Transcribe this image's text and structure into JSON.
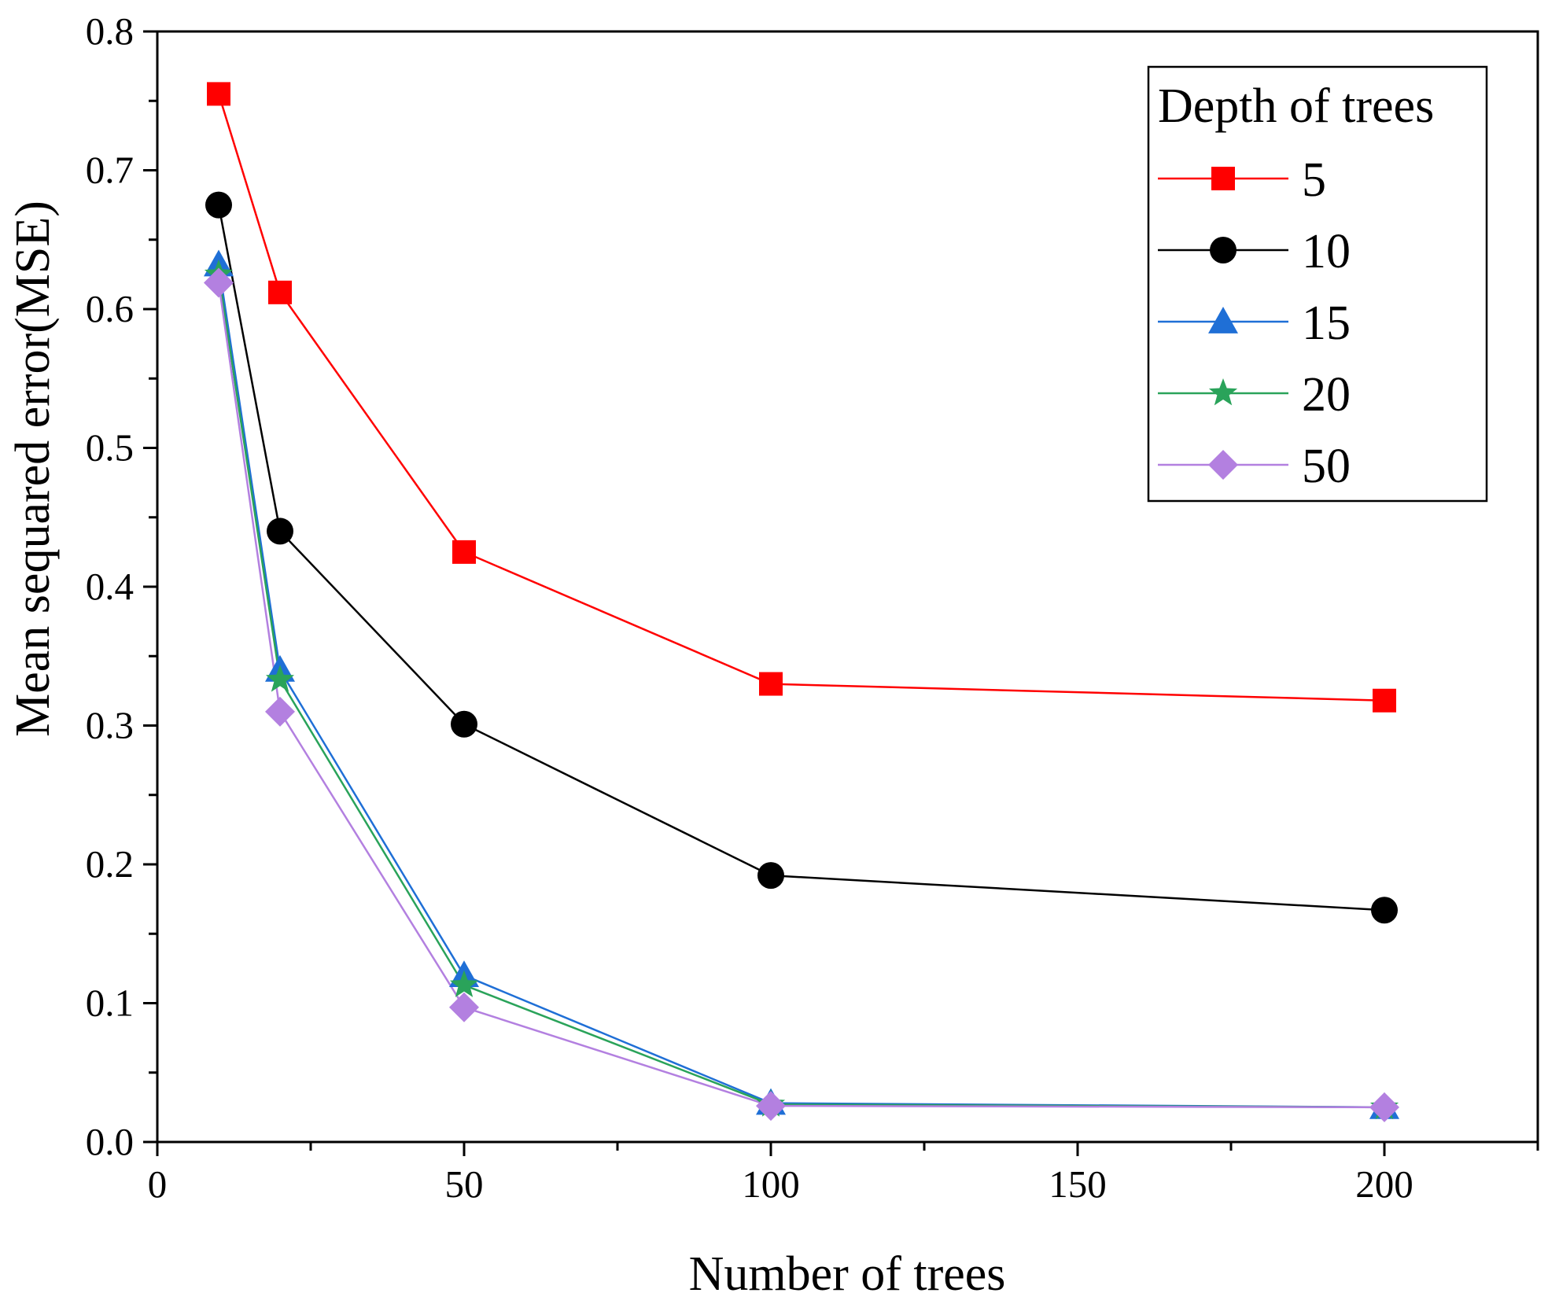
{
  "chart_data": {
    "type": "line",
    "title": "",
    "xlabel": "Number of trees",
    "ylabel": "Mean sequared error(MSE)",
    "xlim": [
      0,
      225
    ],
    "ylim": [
      0,
      0.8
    ],
    "xticks": [
      0,
      50,
      100,
      150,
      200
    ],
    "xtick_labels": [
      "0",
      "50",
      "100",
      "150",
      "200"
    ],
    "yticks": [
      0,
      0.1,
      0.2,
      0.3,
      0.4,
      0.5,
      0.6,
      0.7,
      0.8
    ],
    "ytick_labels": [
      "0.0",
      "0.1",
      "0.2",
      "0.3",
      "0.4",
      "0.5",
      "0.6",
      "0.7",
      "0.8"
    ],
    "grid": false,
    "legend": {
      "title": "Depth of trees",
      "placement": "top-right"
    },
    "x": [
      10,
      20,
      50,
      100,
      200
    ],
    "series": [
      {
        "name": "5",
        "values": [
          0.755,
          0.612,
          0.425,
          0.33,
          0.318
        ],
        "color": "#ff0000",
        "marker": "square"
      },
      {
        "name": "10",
        "values": [
          0.675,
          0.44,
          0.301,
          0.192,
          0.167
        ],
        "color": "#000000",
        "marker": "circle"
      },
      {
        "name": "15",
        "values": [
          0.632,
          0.34,
          0.12,
          0.028,
          0.025
        ],
        "color": "#1f6fd6",
        "marker": "triangle"
      },
      {
        "name": "20",
        "values": [
          0.625,
          0.333,
          0.113,
          0.027,
          0.025
        ],
        "color": "#2aa35a",
        "marker": "star"
      },
      {
        "name": "50",
        "values": [
          0.619,
          0.31,
          0.097,
          0.026,
          0.025
        ],
        "color": "#b380e0",
        "marker": "diamond"
      }
    ]
  }
}
